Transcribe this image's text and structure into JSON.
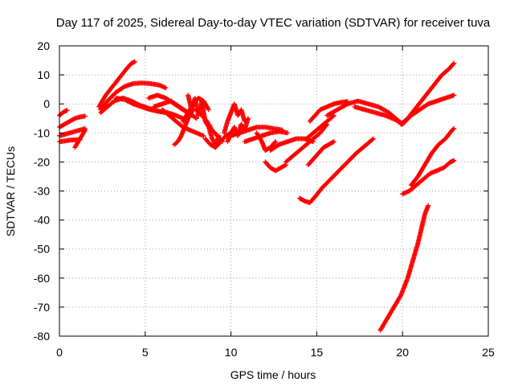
{
  "chart_data": {
    "type": "scatter",
    "title": "Day 117 of 2025, Sidereal Day-to-day VTEC variation (SDTVAR) for receiver tuva",
    "xlabel": "GPS time / hours",
    "ylabel": "SDTVAR / TECUs",
    "xlim": [
      0,
      25
    ],
    "ylim": [
      -80,
      20
    ],
    "xticks": [
      "0",
      "5",
      "10",
      "15",
      "20",
      "25"
    ],
    "yticks": [
      "20",
      "10",
      "0",
      "-10",
      "-20",
      "-30",
      "-40",
      "-50",
      "-60",
      "-70",
      "-80"
    ],
    "grid": true,
    "marker_color": "#ff0000",
    "series": [
      {
        "x": [
          0.0,
          0.15,
          0.3,
          0.45
        ],
        "y": [
          -4,
          -3.2,
          -2.6,
          -2.2
        ]
      },
      {
        "x": [
          0.0,
          0.3,
          0.6,
          0.9,
          1.2,
          1.5
        ],
        "y": [
          -8,
          -7,
          -6,
          -5,
          -4.5,
          -4.2
        ]
      },
      {
        "x": [
          0.0,
          0.3,
          0.6,
          0.9,
          1.2,
          1.5
        ],
        "y": [
          -11,
          -10.5,
          -10,
          -9.5,
          -9,
          -8.5
        ]
      },
      {
        "x": [
          0.0,
          0.3,
          0.6,
          0.9,
          1.2
        ],
        "y": [
          -13,
          -12.8,
          -12.5,
          -12.4,
          -12.3
        ]
      },
      {
        "x": [
          0.9,
          1.1,
          1.3,
          1.5
        ],
        "y": [
          -15,
          -13,
          -11,
          -9
        ]
      },
      {
        "x": [
          2.3,
          2.7,
          3.1,
          3.5,
          3.9,
          4.2,
          4.4
        ],
        "y": [
          -1,
          3,
          6,
          9,
          12,
          14,
          14.5
        ]
      },
      {
        "x": [
          2.4,
          2.8,
          3.3,
          3.8,
          4.3,
          4.8,
          5.3,
          5.8,
          6.2
        ],
        "y": [
          -2,
          1,
          4,
          6,
          7,
          7.2,
          7,
          6.5,
          5.5
        ]
      },
      {
        "x": [
          2.4,
          2.8,
          3.2,
          3.7,
          4.2,
          4.7,
          5.2,
          5.7,
          6.2
        ],
        "y": [
          -3,
          -1,
          1,
          2,
          1,
          -0.5,
          -1.5,
          -2.5,
          -3
        ]
      },
      {
        "x": [
          3.3,
          3.8,
          4.3,
          4.8,
          5.3,
          5.8,
          6.3,
          6.8,
          7.2
        ],
        "y": [
          2,
          1.5,
          0,
          -1,
          -2,
          -2.5,
          -3,
          -4,
          -5
        ]
      },
      {
        "x": [
          5.2,
          5.7,
          6.2,
          6.7,
          7.2,
          7.7
        ],
        "y": [
          2,
          3,
          2,
          0,
          -2,
          -4
        ]
      },
      {
        "x": [
          5.5,
          6.0,
          6.5,
          7.0,
          7.5,
          8.0
        ],
        "y": [
          -1,
          0,
          1,
          -1,
          -3,
          -5
        ]
      },
      {
        "x": [
          6.0,
          6.4,
          6.8,
          7.2,
          7.6,
          8.0,
          8.4
        ],
        "y": [
          -2,
          -4,
          -6,
          -8,
          -9,
          -10,
          -11
        ]
      },
      {
        "x": [
          6.7,
          6.9,
          7.1,
          7.3,
          7.5,
          7.8
        ],
        "y": [
          -14,
          -13,
          -11,
          -8,
          -5,
          -2
        ]
      },
      {
        "x": [
          7.2,
          7.5,
          7.8,
          8.1,
          8.4,
          8.7
        ],
        "y": [
          -6,
          -3,
          0,
          2,
          1,
          -2
        ]
      },
      {
        "x": [
          7.5,
          7.7,
          7.9,
          8.1,
          8.3,
          8.5,
          8.7,
          8.9,
          9.1,
          9.3
        ],
        "y": [
          3,
          -2,
          2,
          -4,
          1,
          -6,
          -8,
          -12,
          -14,
          -11
        ]
      },
      {
        "x": [
          8.0,
          8.3,
          8.6,
          8.9,
          9.2,
          9.5
        ],
        "y": [
          -2,
          -4,
          -6,
          -9,
          -11,
          -13
        ]
      },
      {
        "x": [
          8.5,
          8.8,
          9.1,
          9.4,
          9.7,
          10.0
        ],
        "y": [
          -12,
          -14,
          -15,
          -13,
          -11,
          -10
        ]
      },
      {
        "x": [
          9.6,
          9.8,
          10.0,
          10.2,
          10.4,
          10.6,
          10.8
        ],
        "y": [
          -10,
          -6,
          -3,
          0,
          -4,
          -2,
          -6
        ]
      },
      {
        "x": [
          9.8,
          10.0,
          10.2,
          10.4,
          10.6,
          10.8,
          11.0
        ],
        "y": [
          -13,
          -10,
          -8,
          -11,
          -7,
          -9,
          -5
        ]
      },
      {
        "x": [
          10.0,
          10.5,
          11.0,
          11.5,
          12.0,
          12.5,
          13.0
        ],
        "y": [
          -11,
          -10,
          -9,
          -8,
          -8,
          -8.5,
          -9
        ]
      },
      {
        "x": [
          10.8,
          11.3,
          11.8,
          12.3,
          12.8,
          13.3
        ],
        "y": [
          -13,
          -12,
          -11,
          -10,
          -9.5,
          -10
        ]
      },
      {
        "x": [
          11.5,
          11.8,
          12.0,
          12.3,
          12.6
        ],
        "y": [
          -10,
          -13,
          -16,
          -15,
          -13
        ]
      },
      {
        "x": [
          12.3,
          12.8,
          13.3,
          13.8,
          14.3,
          14.8
        ],
        "y": [
          -16,
          -14,
          -13,
          -12,
          -12,
          -13
        ]
      },
      {
        "x": [
          12.0,
          12.3,
          12.6,
          12.9,
          13.2
        ],
        "y": [
          -20,
          -22,
          -23,
          -22,
          -21
        ]
      },
      {
        "x": [
          13.2,
          13.6,
          14.0,
          14.4,
          14.8,
          15.2,
          15.6
        ],
        "y": [
          -20,
          -18,
          -16,
          -14,
          -12,
          -10,
          -7
        ]
      },
      {
        "x": [
          14.4,
          14.8,
          15.2,
          15.6,
          16.0
        ],
        "y": [
          -12,
          -10,
          -8,
          -6,
          -4
        ]
      },
      {
        "x": [
          14.5,
          14.8,
          15.1,
          15.4,
          15.7,
          16.0
        ],
        "y": [
          -21,
          -19,
          -17,
          -15,
          -14,
          -13
        ]
      },
      {
        "x": [
          14.6,
          14.9,
          15.2,
          15.6,
          16.0,
          16.4,
          16.8
        ],
        "y": [
          -6,
          -4,
          -2,
          -1,
          0,
          0.5,
          0.8
        ]
      },
      {
        "x": [
          15.6,
          16.2,
          16.8,
          17.4,
          18.0,
          18.6,
          19.2,
          19.6,
          20.0
        ],
        "y": [
          -4,
          -2,
          0,
          1,
          0,
          -1,
          -3,
          -5,
          -7
        ]
      },
      {
        "x": [
          17.2,
          17.8,
          18.4,
          19.0,
          19.6,
          20.0
        ],
        "y": [
          -1,
          -2,
          -3,
          -4,
          -5.5,
          -7
        ]
      },
      {
        "x": [
          14.0,
          14.3,
          14.6,
          14.9,
          15.3,
          15.8,
          16.3,
          16.8,
          17.3,
          17.8,
          18.3
        ],
        "y": [
          -32.5,
          -33.5,
          -34,
          -32,
          -29,
          -26,
          -23,
          -20,
          -17,
          -14.5,
          -12
        ]
      },
      {
        "x": [
          18.7,
          19.1,
          19.5,
          19.9,
          20.3,
          20.6,
          20.9,
          21.1,
          21.3,
          21.5
        ],
        "y": [
          -78,
          -74,
          -70,
          -66,
          -60,
          -54,
          -48,
          -43,
          -38,
          -35
        ]
      },
      {
        "x": [
          20.0,
          20.4,
          20.8,
          21.2,
          21.6,
          22.0,
          22.4,
          22.8,
          23.0
        ],
        "y": [
          -31,
          -30,
          -28,
          -26,
          -24,
          -23,
          -22,
          -20,
          -19.5
        ]
      },
      {
        "x": [
          20.5,
          20.9,
          21.3,
          21.7,
          22.1,
          22.5,
          22.9,
          23.0
        ],
        "y": [
          -28,
          -25,
          -21,
          -17,
          -14,
          -12,
          -9,
          -8.5
        ]
      },
      {
        "x": [
          20.0,
          20.5,
          21.0,
          21.5,
          22.0,
          22.5,
          23.0
        ],
        "y": [
          -7,
          -4,
          -2,
          0,
          1,
          2,
          3
        ]
      },
      {
        "x": [
          19.9,
          20.3,
          20.7,
          21.1,
          21.5,
          21.9,
          22.3,
          22.7,
          23.0
        ],
        "y": [
          -7,
          -5,
          -2,
          1,
          4,
          7,
          10,
          12,
          14
        ]
      }
    ]
  }
}
